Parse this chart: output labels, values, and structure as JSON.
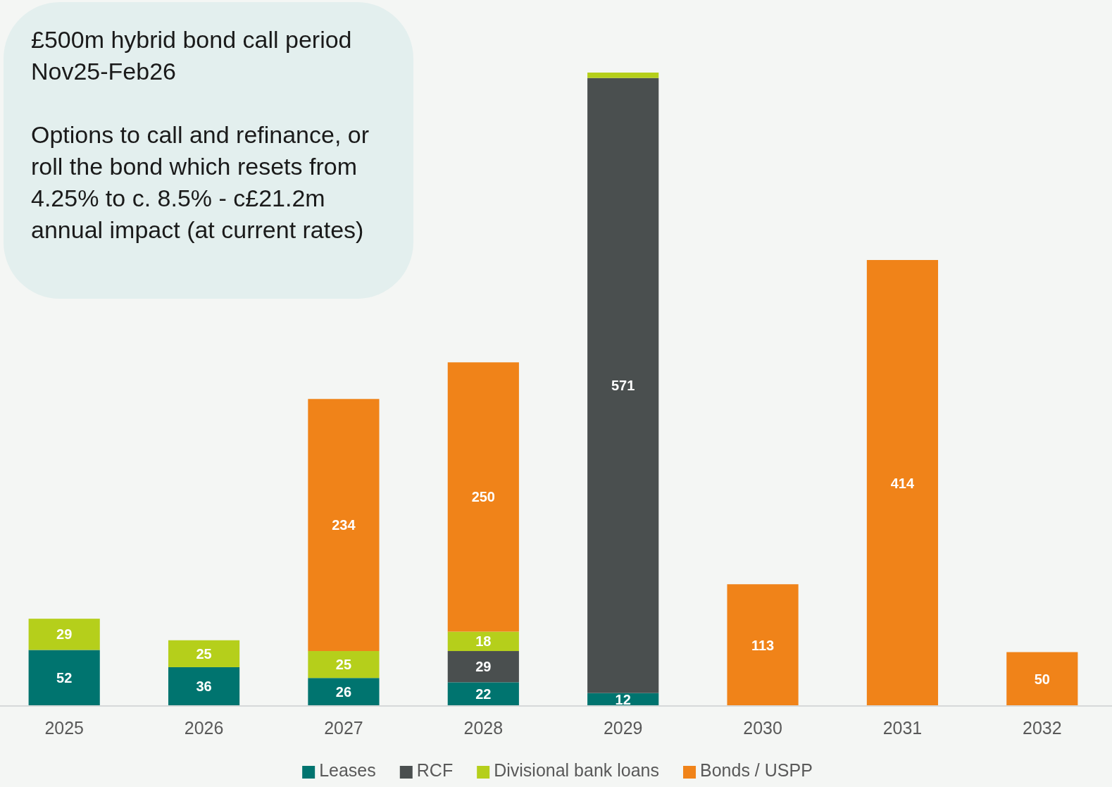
{
  "chart_data": {
    "type": "bar",
    "stacked": true,
    "categories": [
      "2025",
      "2026",
      "2027",
      "2028",
      "2029",
      "2030",
      "2031",
      "2032"
    ],
    "series": [
      {
        "name": "Leases",
        "color": "#00746f",
        "values": [
          52,
          36,
          26,
          22,
          12,
          null,
          null,
          null
        ],
        "value_labels": [
          "52",
          "36",
          "26",
          "22",
          "12",
          null,
          null,
          null
        ]
      },
      {
        "name": "RCF",
        "color": "#4a4f4f",
        "values": [
          null,
          null,
          null,
          29,
          571,
          null,
          null,
          null
        ],
        "value_labels": [
          null,
          null,
          null,
          "29",
          "571",
          null,
          null,
          null
        ]
      },
      {
        "name": "Divisional bank loans",
        "color": "#b5cf1b",
        "values": [
          29,
          25,
          25,
          18,
          5,
          null,
          null,
          null
        ],
        "value_labels": [
          "29",
          "25",
          "25",
          "18",
          null,
          null,
          null,
          null
        ]
      },
      {
        "name": "Bonds / USPP",
        "color": "#f08319",
        "values": [
          null,
          null,
          234,
          250,
          null,
          113,
          414,
          50
        ],
        "value_labels": [
          null,
          null,
          "234",
          "250",
          null,
          "113",
          "414",
          "50"
        ]
      }
    ],
    "legend": "bottom",
    "annotations": [
      "£500m hybrid bond call period Nov25-Feb26",
      "Options to call and refinance, or roll the bond which resets from 4.25% to c. 8.5% - c£21.2m annual impact (at current rates)"
    ]
  }
}
